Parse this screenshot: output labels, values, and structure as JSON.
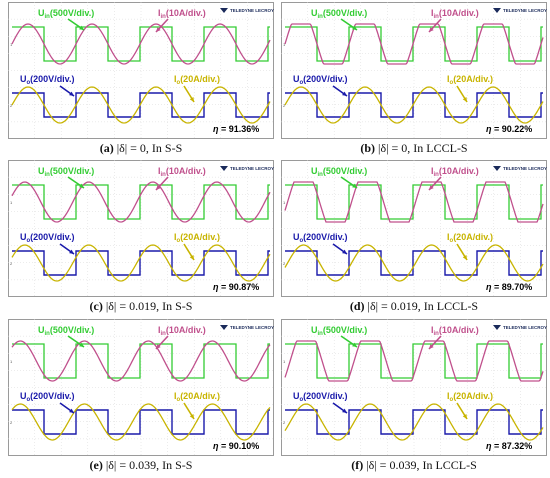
{
  "brand": "TELEDYNE LECROY",
  "labels": {
    "uin": "U",
    "uin_sub": "in",
    "uin_scale": "(500V/div.)",
    "iin": "I",
    "iin_sub": "in",
    "iin_scale": "(10A/div.)",
    "uo": "U",
    "uo_sub": "o",
    "uo_scale": "(200V/div.)",
    "io": "I",
    "io_sub": "o",
    "io_scale": "(20A/div.)",
    "eta": "η"
  },
  "colors": {
    "uin": "#33cc33",
    "iin": "#c0508c",
    "uo": "#1a1aaa",
    "io": "#c8b400"
  },
  "chart_data": [
    {
      "type": "line",
      "tag": "(a)",
      "caption": "|δ| = 0, In S-S",
      "efficiency": "91.36%",
      "uin_phase": 0.0,
      "iin_phase": 0.0,
      "uo_phase": 0.0,
      "io_phase": 0.0,
      "iin_shape": "sine"
    },
    {
      "type": "line",
      "tag": "(b)",
      "caption": "|δ| = 0, In LCCL-S",
      "efficiency": "90.22%",
      "uin_phase": 0.0,
      "iin_phase": 0.0,
      "uo_phase": 0.0,
      "io_phase": 0.0,
      "iin_shape": "trapezoid"
    },
    {
      "type": "line",
      "tag": "(c)",
      "caption": "|δ| = 0.019, In S-S",
      "efficiency": "90.87%",
      "uin_phase": 0.0,
      "iin_phase": -0.05,
      "uo_phase": 0.0,
      "io_phase": -0.05,
      "iin_shape": "sine"
    },
    {
      "type": "line",
      "tag": "(d)",
      "caption": "|δ| = 0.019, In LCCL-S",
      "efficiency": "89.70%",
      "uin_phase": 0.0,
      "iin_phase": 0.04,
      "uo_phase": 0.0,
      "io_phase": 0.04,
      "iin_shape": "trapezoid"
    },
    {
      "type": "line",
      "tag": "(e)",
      "caption": "|δ| = 0.039, In S-S",
      "efficiency": "90.10%",
      "uin_phase": 0.0,
      "iin_phase": -0.12,
      "uo_phase": 0.0,
      "io_phase": -0.12,
      "iin_shape": "sine"
    },
    {
      "type": "line",
      "tag": "(f)",
      "caption": "|δ| = 0.039, In LCCL-S",
      "efficiency": "87.32%",
      "uin_phase": 0.0,
      "iin_phase": 0.08,
      "uo_phase": 0.0,
      "io_phase": 0.08,
      "iin_shape": "trapezoid"
    }
  ]
}
